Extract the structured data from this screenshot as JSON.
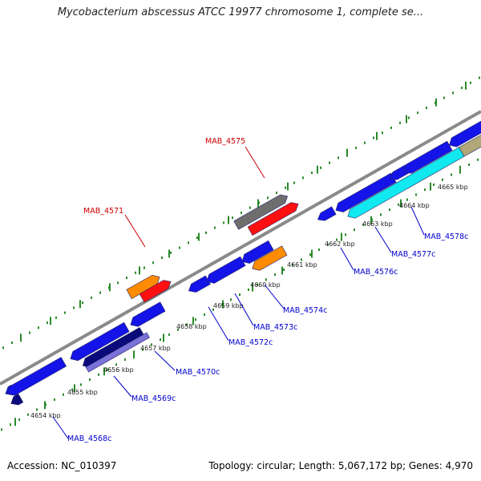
{
  "map": {
    "title": "Mycobacterium abscessus ATCC 19977 chromosome 1, complete se...",
    "accession": "Accession: NC_010397",
    "summary": "Topology: circular; Length: 5,067,172 bp; Genes: 4,970"
  },
  "colors": {
    "backbone": "#8a8a8a",
    "tick": "#2a8a2a",
    "gene_plus": "#1414e8",
    "gene_navy": "#0a0a7a",
    "gene_lavender": "#7a72d8",
    "gene_cyan": "#12e8f0",
    "gene_orange": "#ff8c00",
    "gene_red": "#ff1010",
    "gene_gray": "#6e6e6e",
    "gene_olive": "#b0a878",
    "label_blue": "#0000cc",
    "label_red": "#cc0000"
  },
  "scale_labels": [
    "4654 kbp",
    "4655 kbp",
    "4656 kbp",
    "4657 kbp",
    "4658 kbp",
    "4659 kbp",
    "4660 kbp",
    "4661 kbp",
    "4662 kbp",
    "4663 kbp",
    "4664 kbp",
    "4665 kbp"
  ],
  "gene_labels": [
    "MAB_4568c",
    "MAB_4569c",
    "MAB_4570c",
    "MAB_4571",
    "MAB_4572c",
    "MAB_4573c",
    "MAB_4574c",
    "MAB_4575",
    "MAB_4576c",
    "MAB_4577c",
    "MAB_4578c"
  ]
}
